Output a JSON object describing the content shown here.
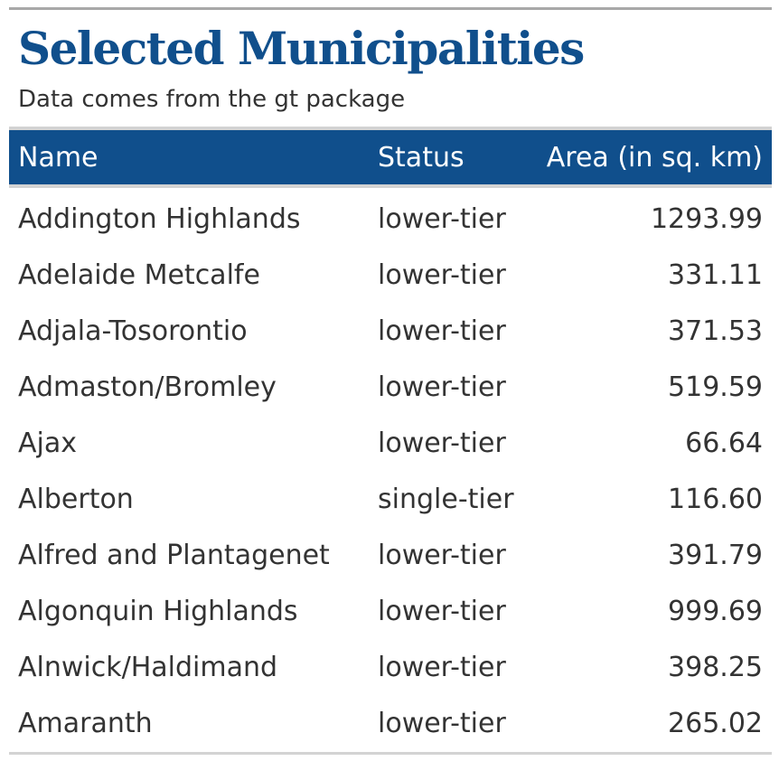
{
  "header": {
    "title": "Selected Municipalities",
    "subtitle": "Data comes from the gt package"
  },
  "columns": {
    "name": "Name",
    "status": "Status",
    "area": "Area (in sq. km)"
  },
  "rows": [
    {
      "name": "Addington Highlands",
      "status": "lower-tier",
      "area": "1293.99"
    },
    {
      "name": "Adelaide Metcalfe",
      "status": "lower-tier",
      "area": "331.11"
    },
    {
      "name": "Adjala-Tosorontio",
      "status": "lower-tier",
      "area": "371.53"
    },
    {
      "name": "Admaston/Bromley",
      "status": "lower-tier",
      "area": "519.59"
    },
    {
      "name": "Ajax",
      "status": "lower-tier",
      "area": "66.64"
    },
    {
      "name": "Alberton",
      "status": "single-tier",
      "area": "116.60"
    },
    {
      "name": "Alfred and Plantagenet",
      "status": "lower-tier",
      "area": "391.79"
    },
    {
      "name": "Algonquin Highlands",
      "status": "lower-tier",
      "area": "999.69"
    },
    {
      "name": "Alnwick/Haldimand",
      "status": "lower-tier",
      "area": "398.25"
    },
    {
      "name": "Amaranth",
      "status": "lower-tier",
      "area": "265.02"
    }
  ],
  "colors": {
    "accent": "#104f8c",
    "header_text": "#ffffff",
    "body_text": "#333333",
    "rule_top": "#a8a8a8",
    "rule": "#d3d3d3"
  }
}
